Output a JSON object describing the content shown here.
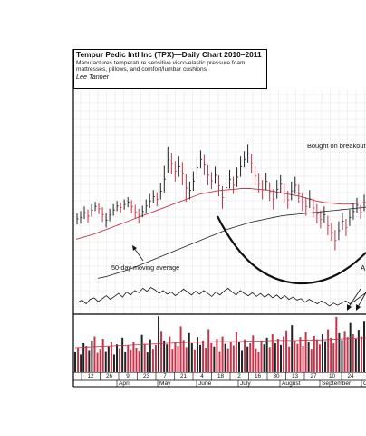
{
  "header": {
    "title": "Tempur Pedic Intl Inc (TPX)—Daily Chart 2010–2011",
    "description": "Manufactures temperature sensitive visco-elastic pressure foam mattresses, pillows, and comfort/lumbar cushions",
    "author": "Lee Tanner"
  },
  "annotations": {
    "moving_average_label": "50-day moving average",
    "breakout_label": "Bought on breakout",
    "cut_off_label": "A"
  },
  "colors": {
    "up_bar": "#222222",
    "down_bar": "#c5344a",
    "ma50_line": "#c5344a",
    "ma200_line": "#222222",
    "cup_curve": "#111111",
    "grid": "#dddddd"
  },
  "chart_data": {
    "type": "ohlc",
    "x_date_labels": [
      "12",
      "26",
      "9",
      "23",
      "7",
      "21",
      "4",
      "18",
      "2",
      "16",
      "30",
      "13",
      "27",
      "10",
      "24"
    ],
    "month_labels": [
      "April",
      "May",
      "June",
      "July",
      "August",
      "September",
      "O"
    ],
    "grid": true,
    "price_bars": [
      {
        "h": 64.3,
        "l": 62.9,
        "up": true
      },
      {
        "h": 64.6,
        "l": 63.0,
        "up": true
      },
      {
        "h": 65.2,
        "l": 63.6,
        "up": true
      },
      {
        "h": 64.8,
        "l": 63.1,
        "up": false
      },
      {
        "h": 65.5,
        "l": 63.9,
        "up": true
      },
      {
        "h": 65.8,
        "l": 64.6,
        "up": true
      },
      {
        "h": 65.6,
        "l": 64.2,
        "up": false
      },
      {
        "h": 65.1,
        "l": 63.2,
        "up": false
      },
      {
        "h": 64.4,
        "l": 62.5,
        "up": true
      },
      {
        "h": 64.9,
        "l": 63.3,
        "up": true
      },
      {
        "h": 65.5,
        "l": 64.0,
        "up": true
      },
      {
        "h": 65.9,
        "l": 64.6,
        "up": true
      },
      {
        "h": 65.7,
        "l": 64.4,
        "up": false
      },
      {
        "h": 66.1,
        "l": 64.8,
        "up": true
      },
      {
        "h": 66.4,
        "l": 65.1,
        "up": true
      },
      {
        "h": 66.0,
        "l": 64.3,
        "up": false
      },
      {
        "h": 65.4,
        "l": 63.6,
        "up": false
      },
      {
        "h": 64.9,
        "l": 63.0,
        "up": false
      },
      {
        "h": 65.3,
        "l": 63.8,
        "up": true
      },
      {
        "h": 66.1,
        "l": 64.4,
        "up": true
      },
      {
        "h": 66.8,
        "l": 65.0,
        "up": true
      },
      {
        "h": 67.3,
        "l": 65.6,
        "up": true
      },
      {
        "h": 67.0,
        "l": 65.2,
        "up": false
      },
      {
        "h": 68.2,
        "l": 66.1,
        "up": true
      },
      {
        "h": 70.4,
        "l": 67.0,
        "up": true
      },
      {
        "h": 72.8,
        "l": 69.5,
        "up": true
      },
      {
        "h": 72.1,
        "l": 69.3,
        "up": false
      },
      {
        "h": 71.0,
        "l": 68.4,
        "up": false
      },
      {
        "h": 71.6,
        "l": 69.0,
        "up": true
      },
      {
        "h": 70.9,
        "l": 67.9,
        "up": false
      },
      {
        "h": 69.3,
        "l": 65.8,
        "up": false
      },
      {
        "h": 68.4,
        "l": 66.1,
        "up": true
      },
      {
        "h": 69.7,
        "l": 67.2,
        "up": true
      },
      {
        "h": 71.5,
        "l": 68.8,
        "up": true
      },
      {
        "h": 72.4,
        "l": 70.1,
        "up": true
      },
      {
        "h": 71.8,
        "l": 69.2,
        "up": false
      },
      {
        "h": 70.5,
        "l": 67.9,
        "up": false
      },
      {
        "h": 69.6,
        "l": 67.4,
        "up": false
      },
      {
        "h": 70.3,
        "l": 68.1,
        "up": true
      },
      {
        "h": 69.2,
        "l": 66.5,
        "up": false
      },
      {
        "h": 67.8,
        "l": 64.9,
        "up": false
      },
      {
        "h": 68.9,
        "l": 66.3,
        "up": true
      },
      {
        "h": 69.9,
        "l": 67.5,
        "up": true
      },
      {
        "h": 69.0,
        "l": 66.8,
        "up": false
      },
      {
        "h": 70.2,
        "l": 67.7,
        "up": true
      },
      {
        "h": 71.6,
        "l": 69.0,
        "up": true
      },
      {
        "h": 72.3,
        "l": 70.2,
        "up": true
      },
      {
        "h": 73.1,
        "l": 70.8,
        "up": true
      },
      {
        "h": 72.0,
        "l": 69.4,
        "up": false
      },
      {
        "h": 70.3,
        "l": 67.9,
        "up": false
      },
      {
        "h": 69.4,
        "l": 67.0,
        "up": false
      },
      {
        "h": 68.6,
        "l": 66.1,
        "up": false
      },
      {
        "h": 69.5,
        "l": 67.3,
        "up": true
      },
      {
        "h": 68.3,
        "l": 65.9,
        "up": false
      },
      {
        "h": 67.4,
        "l": 64.8,
        "up": false
      },
      {
        "h": 68.6,
        "l": 66.2,
        "up": true
      },
      {
        "h": 69.2,
        "l": 66.9,
        "up": true
      },
      {
        "h": 68.1,
        "l": 65.7,
        "up": false
      },
      {
        "h": 67.2,
        "l": 64.9,
        "up": false
      },
      {
        "h": 68.4,
        "l": 66.0,
        "up": true
      },
      {
        "h": 69.0,
        "l": 66.8,
        "up": true
      },
      {
        "h": 68.0,
        "l": 65.6,
        "up": false
      },
      {
        "h": 67.0,
        "l": 64.6,
        "up": false
      },
      {
        "h": 66.4,
        "l": 64.0,
        "up": false
      },
      {
        "h": 67.3,
        "l": 65.0,
        "up": true
      },
      {
        "h": 66.2,
        "l": 63.8,
        "up": false
      },
      {
        "h": 65.5,
        "l": 63.0,
        "up": false
      },
      {
        "h": 64.7,
        "l": 62.4,
        "up": false
      },
      {
        "h": 65.2,
        "l": 63.1,
        "up": true
      },
      {
        "h": 64.0,
        "l": 61.5,
        "up": false
      },
      {
        "h": 63.1,
        "l": 60.8,
        "up": false
      },
      {
        "h": 62.2,
        "l": 59.6,
        "up": false
      },
      {
        "h": 63.3,
        "l": 60.9,
        "up": true
      },
      {
        "h": 64.4,
        "l": 62.2,
        "up": true
      },
      {
        "h": 63.6,
        "l": 61.4,
        "up": false
      },
      {
        "h": 64.8,
        "l": 62.7,
        "up": true
      },
      {
        "h": 65.6,
        "l": 63.5,
        "up": true
      },
      {
        "h": 66.3,
        "l": 64.4,
        "up": true
      },
      {
        "h": 65.4,
        "l": 63.6,
        "up": false
      },
      {
        "h": 66.7,
        "l": 64.6,
        "up": true
      }
    ],
    "ma50": [
      61.0,
      61.3,
      61.6,
      62.0,
      62.4,
      62.8,
      63.2,
      63.6,
      64.0,
      64.4,
      64.8,
      65.2,
      65.6,
      66.0,
      66.4,
      66.8,
      67.0,
      67.2,
      67.3,
      67.4,
      67.5,
      67.5,
      67.4,
      67.3,
      67.1,
      66.9,
      66.7,
      66.5,
      66.2,
      65.9,
      65.7,
      65.6,
      65.5,
      65.5,
      65.6,
      65.7
    ],
    "ma200": [
      56.0,
      56.2,
      56.5,
      56.8,
      57.1,
      57.5,
      57.9,
      58.3,
      58.7,
      59.1,
      59.5,
      59.9,
      60.3,
      60.7,
      61.1,
      61.5,
      61.9,
      62.3,
      62.6,
      62.9,
      63.2,
      63.4,
      63.6,
      63.8,
      64.0,
      64.1,
      64.2,
      64.3,
      64.4,
      64.5,
      64.6,
      64.7,
      64.8,
      64.9,
      65.0,
      65.1
    ],
    "relative_strength": [
      1.0,
      1.3,
      0.8,
      1.4,
      1.6,
      1.1,
      1.5,
      1.9,
      1.4,
      1.8,
      2.2,
      1.7,
      2.4,
      2.0,
      2.6,
      2.3,
      2.9,
      2.5,
      3.0,
      2.7,
      2.2,
      2.6,
      2.1,
      2.4,
      1.9,
      2.3,
      2.8,
      2.4,
      2.0,
      2.5,
      2.1,
      2.6,
      2.2,
      1.8,
      2.4,
      2.0,
      2.5,
      2.9,
      2.4,
      2.0,
      2.6,
      2.2,
      1.9,
      2.3,
      1.8,
      2.2,
      1.7,
      2.1,
      1.6,
      2.0,
      1.5,
      1.9,
      1.4,
      1.7,
      1.3,
      1.5,
      1.0,
      1.4,
      1.1,
      0.8,
      1.2,
      0.9,
      0.5,
      0.9,
      0.6,
      0.9,
      1.2,
      0.8,
      1.1,
      1.5,
      1.9,
      2.3
    ],
    "volume": [
      0.35,
      0.42,
      0.3,
      0.5,
      0.45,
      0.38,
      0.55,
      0.62,
      0.33,
      0.4,
      0.58,
      0.36,
      0.44,
      0.52,
      0.3,
      0.48,
      0.41,
      0.6,
      0.35,
      0.46,
      0.39,
      0.53,
      0.42,
      0.37,
      0.65,
      0.49,
      0.34,
      0.57,
      0.4,
      0.47,
      0.98,
      0.72,
      0.55,
      0.48,
      0.62,
      0.4,
      0.52,
      0.45,
      0.8,
      0.56,
      0.43,
      0.68,
      0.5,
      0.39,
      0.61,
      0.47,
      0.55,
      0.42,
      0.75,
      0.5,
      0.44,
      0.58,
      0.36,
      0.62,
      0.49,
      0.41,
      0.53,
      0.46,
      0.7,
      0.52,
      0.38,
      0.57,
      0.44,
      0.5,
      0.64,
      0.41,
      0.35,
      0.55,
      0.48,
      0.6,
      0.43,
      0.66,
      0.5,
      0.58,
      0.47,
      0.62,
      0.73,
      0.44,
      0.82,
      0.55,
      0.49,
      0.61,
      0.45,
      0.7,
      0.52,
      0.4,
      0.63,
      0.57,
      0.48,
      0.66,
      0.54,
      0.75,
      0.6,
      0.5,
      0.97,
      0.68,
      0.56,
      0.72,
      0.61,
      0.86,
      0.66,
      0.58,
      0.74,
      0.62,
      0.9
    ],
    "volume_average": [
      0.42,
      0.43,
      0.44,
      0.45,
      0.46,
      0.47,
      0.48,
      0.49,
      0.5,
      0.51,
      0.52,
      0.52,
      0.53,
      0.53,
      0.53,
      0.54,
      0.54,
      0.55,
      0.55,
      0.55,
      0.56,
      0.56,
      0.57,
      0.58,
      0.59,
      0.6
    ]
  }
}
